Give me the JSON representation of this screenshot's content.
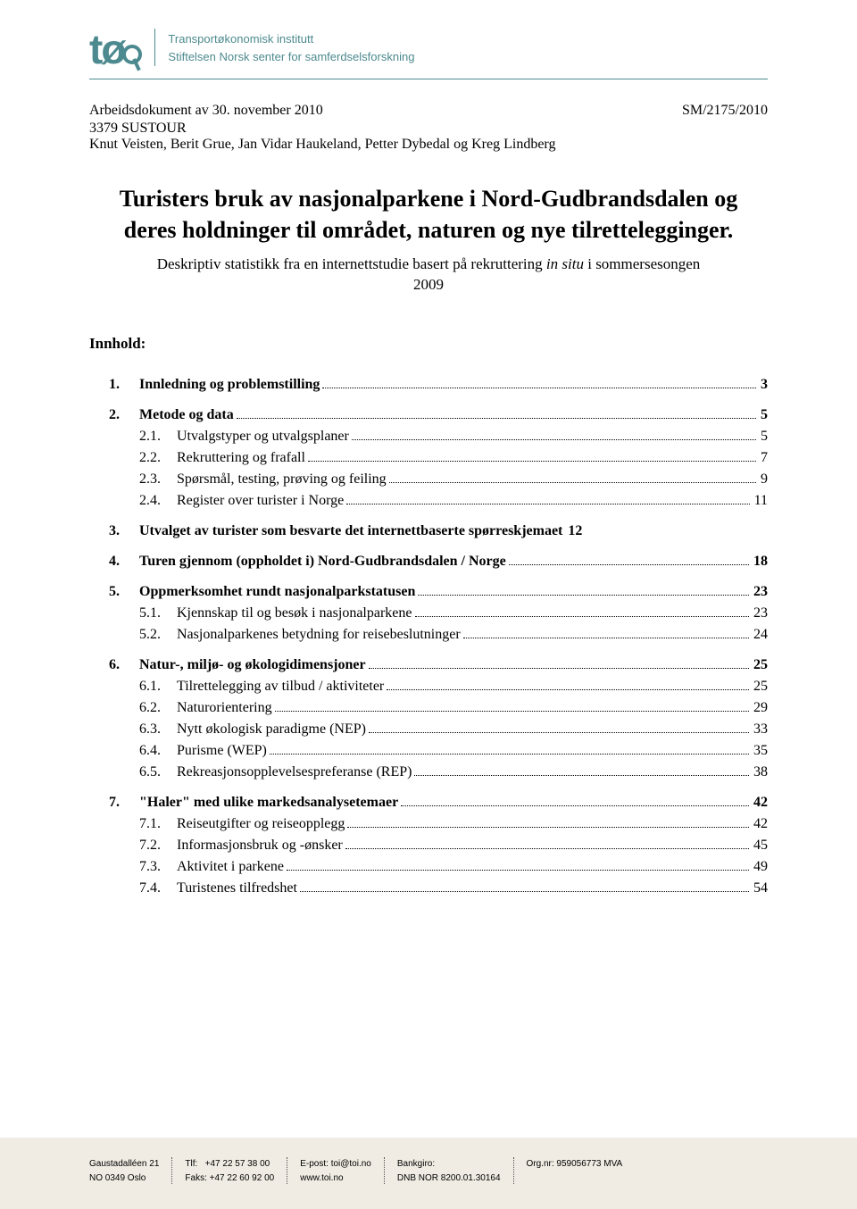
{
  "header": {
    "logo_text": "tø",
    "org_line1": "Transportøkonomisk institutt",
    "org_line2": "Stiftelsen Norsk senter for samferdselsforskning"
  },
  "meta": {
    "doc_line": "Arbeidsdokument av 30. november 2010",
    "ref": "SM/2175/2010",
    "project": "3379 SUSTOUR",
    "authors": "Knut Veisten, Berit Grue, Jan Vidar Haukeland, Petter Dybedal og Kreg Lindberg"
  },
  "title": "Turisters bruk av nasjonalparkene i Nord-Gudbrandsdalen og deres holdninger til området, naturen og nye tilrettelegginger.",
  "subtitle_prefix": "Deskriptiv statistikk fra en internettstudie basert på rekruttering ",
  "subtitle_italic": "in situ",
  "subtitle_suffix": " i sommersesongen 2009",
  "toc_heading": "Innhold:",
  "toc": [
    {
      "level": 1,
      "num": "1.",
      "label": "Innledning og problemstilling",
      "page": "3"
    },
    {
      "level": 1,
      "num": "2.",
      "label": "Metode og data",
      "page": "5"
    },
    {
      "level": 2,
      "num": "2.1.",
      "label": "Utvalgstyper og utvalgsplaner",
      "page": "5"
    },
    {
      "level": 2,
      "num": "2.2.",
      "label": "Rekruttering og frafall",
      "page": "7"
    },
    {
      "level": 2,
      "num": "2.3.",
      "label": "Spørsmål, testing, prøving og feiling",
      "page": "9"
    },
    {
      "level": 2,
      "num": "2.4.",
      "label": "Register over turister i Norge",
      "page": "11"
    },
    {
      "level": 1,
      "num": "3.",
      "label": "Utvalget av turister som besvarte det internettbaserte spørreskjemaet",
      "page": "12"
    },
    {
      "level": 1,
      "num": "4.",
      "label": "Turen gjennom (oppholdet i) Nord-Gudbrandsdalen / Norge",
      "page": "18"
    },
    {
      "level": 1,
      "num": "5.",
      "label": "Oppmerksomhet rundt nasjonalparkstatusen",
      "page": "23"
    },
    {
      "level": 2,
      "num": "5.1.",
      "label": "Kjennskap til og besøk i nasjonalparkene",
      "page": "23"
    },
    {
      "level": 2,
      "num": "5.2.",
      "label": "Nasjonalparkenes betydning for reisebeslutninger",
      "page": "24"
    },
    {
      "level": 1,
      "num": "6.",
      "label": "Natur-, miljø- og økologidimensjoner",
      "page": "25"
    },
    {
      "level": 2,
      "num": "6.1.",
      "label": "Tilrettelegging av tilbud / aktiviteter",
      "page": "25"
    },
    {
      "level": 2,
      "num": "6.2.",
      "label": "Naturorientering",
      "page": "29"
    },
    {
      "level": 2,
      "num": "6.3.",
      "label": "Nytt økologisk paradigme (NEP)",
      "page": "33"
    },
    {
      "level": 2,
      "num": "6.4.",
      "label": "Purisme (WEP)",
      "page": "35"
    },
    {
      "level": 2,
      "num": "6.5.",
      "label": "Rekreasjonsopplevelsespreferanse (REP)",
      "page": "38"
    },
    {
      "level": 1,
      "num": "7.",
      "label": "\"Haler\" med ulike markedsanalysetemaer",
      "page": "42"
    },
    {
      "level": 2,
      "num": "7.1.",
      "label": "Reiseutgifter og reiseopplegg",
      "page": "42"
    },
    {
      "level": 2,
      "num": "7.2.",
      "label": "Informasjonsbruk og -ønsker",
      "page": "45"
    },
    {
      "level": 2,
      "num": "7.3.",
      "label": "Aktivitet i parkene",
      "page": "49"
    },
    {
      "level": 2,
      "num": "7.4.",
      "label": "Turistenes tilfredshet",
      "page": "54"
    }
  ],
  "toc_groups": [
    [
      0
    ],
    [
      1,
      2,
      3,
      4,
      5
    ],
    [
      6
    ],
    [
      7
    ],
    [
      8,
      9,
      10
    ],
    [
      11,
      12,
      13,
      14,
      15,
      16
    ],
    [
      17,
      18,
      19,
      20,
      21
    ]
  ],
  "footer": {
    "col1_line1": "Gaustadalléen 21",
    "col1_line2": "NO 0349 Oslo",
    "col2_tlf_label": "Tlf:",
    "col2_tlf": "+47 22 57 38 00",
    "col2_fax_label": "Faks:",
    "col2_fax": "+47 22 60 92 00",
    "col3_email_label": "E-post:",
    "col3_email": "toi@toi.no",
    "col3_web": "www.toi.no",
    "col4_bank_label": "Bankgiro:",
    "col4_bank": "DNB NOR 8200.01.30164",
    "col5_org_label": "Org.nr:",
    "col5_org": "959056773 MVA"
  },
  "colors": {
    "brand": "#4d8a8f",
    "text": "#000000",
    "footer_bg": "#f0ece3"
  }
}
